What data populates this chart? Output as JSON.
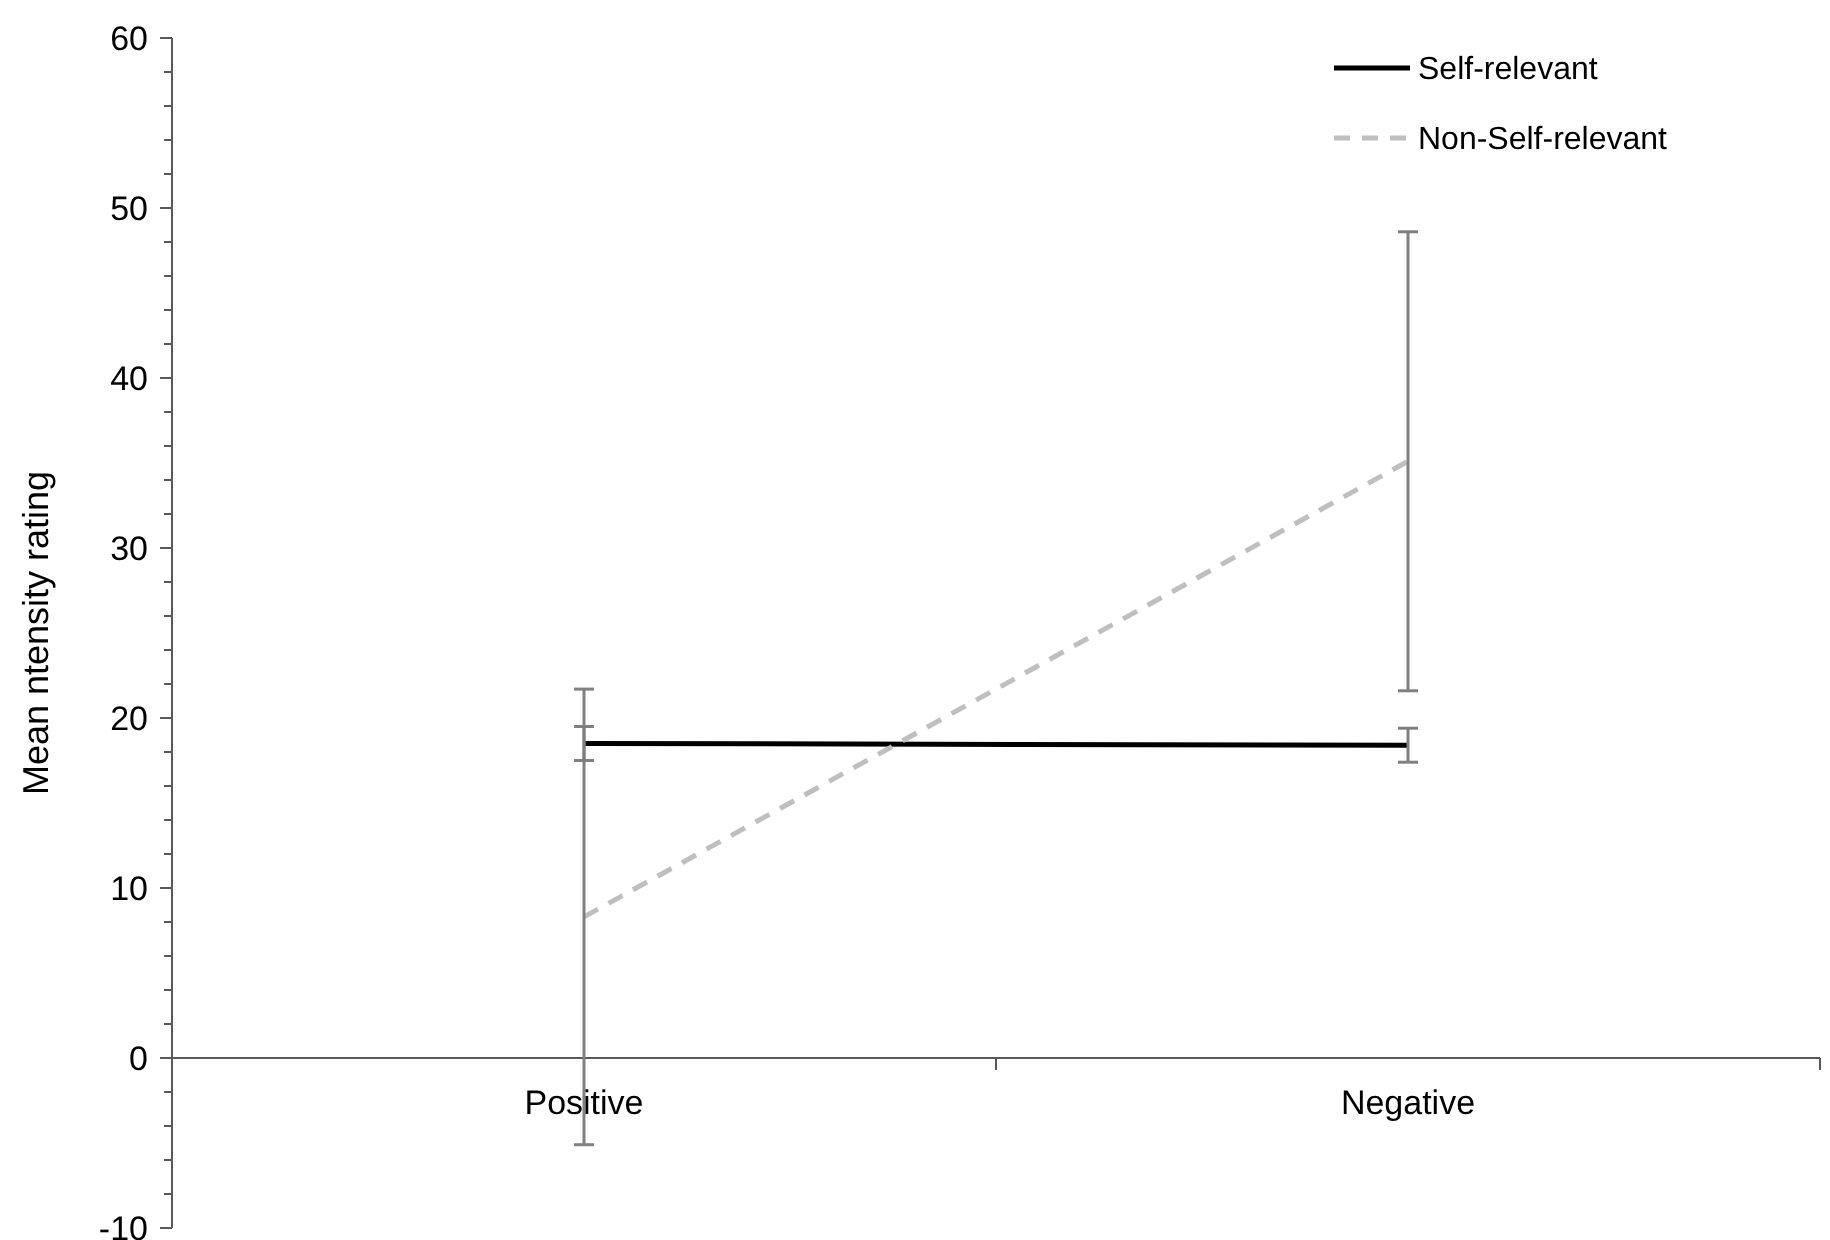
{
  "chart_data": {
    "type": "line",
    "ylabel": "Mean ntensity rating",
    "categories": [
      "Positive",
      "Negative"
    ],
    "series": [
      {
        "name": "Self-relevant",
        "color": "#000000",
        "values": [
          18.5,
          18.4
        ],
        "errors": [
          1.0,
          1.0
        ],
        "line_style": "solid"
      },
      {
        "name": "Non-Self-relevant",
        "color": "#bfbfbf",
        "values": [
          8.3,
          35.1
        ],
        "errors": [
          13.4,
          13.5
        ],
        "line_style": "dashed"
      }
    ],
    "ylim": [
      -10,
      60
    ],
    "yticks": [
      -10,
      {
        "value": -8,
        "label": null
      },
      {
        "value": -6,
        "label": null
      },
      {
        "value": -4,
        "label": null
      },
      {
        "value": -2,
        "label": null
      },
      0,
      {
        "value": 2,
        "label": null
      },
      {
        "value": 4,
        "label": null
      },
      {
        "value": 6,
        "label": null
      },
      {
        "value": 8,
        "label": null
      },
      10,
      {
        "value": 12,
        "label": null
      },
      {
        "value": 14,
        "label": null
      },
      {
        "value": 16,
        "label": null
      },
      {
        "value": 18,
        "label": null
      },
      20,
      {
        "value": 22,
        "label": null
      },
      {
        "value": 24,
        "label": null
      },
      {
        "value": 26,
        "label": null
      },
      {
        "value": 28,
        "label": null
      },
      30,
      {
        "value": 32,
        "label": null
      },
      {
        "value": 34,
        "label": null
      },
      {
        "value": 36,
        "label": null
      },
      {
        "value": 38,
        "label": null
      },
      40,
      {
        "value": 42,
        "label": null
      },
      {
        "value": 44,
        "label": null
      },
      {
        "value": 46,
        "label": null
      },
      {
        "value": 48,
        "label": null
      },
      50,
      {
        "value": 52,
        "label": null
      },
      {
        "value": 54,
        "label": null
      },
      {
        "value": 56,
        "label": null
      },
      {
        "value": 58,
        "label": null
      },
      60
    ],
    "grid": false,
    "legend": "top right",
    "marker": "none"
  }
}
